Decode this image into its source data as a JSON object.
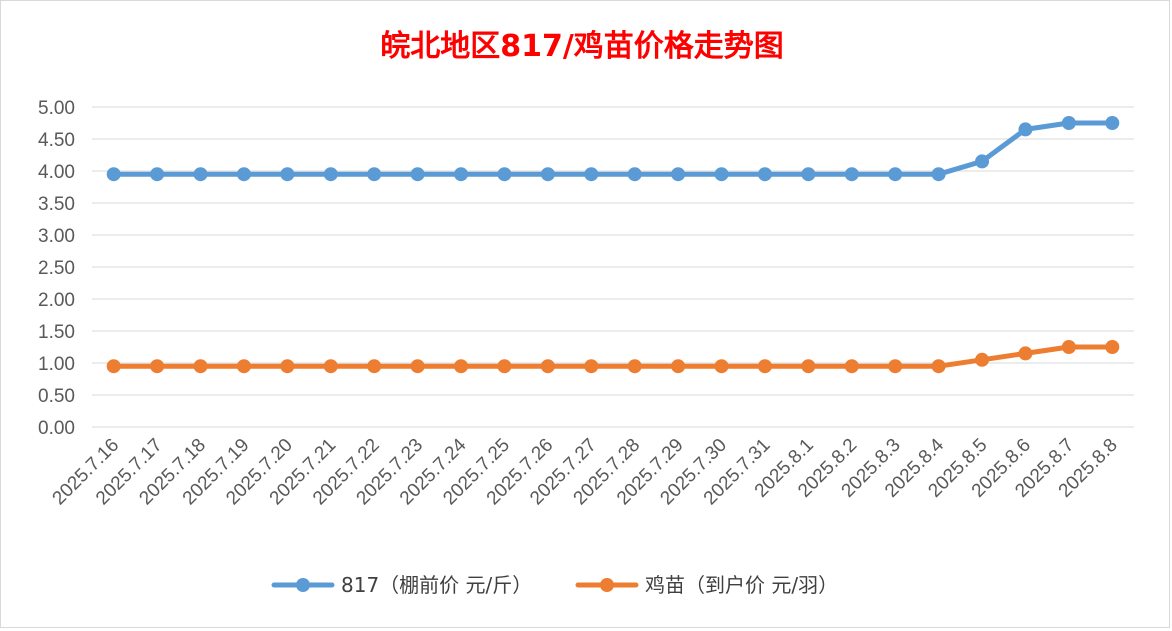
{
  "colors": {
    "series_817": "#5B9BD5",
    "series_chick": "#ED7D31",
    "title": "#FF0000",
    "grid": "#d9d9d9",
    "axis_text": "#595959"
  },
  "chart_data": {
    "type": "line",
    "title": "皖北地区817/鸡苗价格走势图",
    "xlabel": "",
    "ylabel": "",
    "ylim": [
      0,
      5
    ],
    "yticks": [
      "0.00",
      "0.50",
      "1.00",
      "1.50",
      "2.00",
      "2.50",
      "3.00",
      "3.50",
      "4.00",
      "4.50",
      "5.00"
    ],
    "grid": true,
    "legend_position": "bottom",
    "categories": [
      "2025.7.16",
      "2025.7.17",
      "2025.7.18",
      "2025.7.19",
      "2025.7.20",
      "2025.7.21",
      "2025.7.22",
      "2025.7.23",
      "2025.7.24",
      "2025.7.25",
      "2025.7.26",
      "2025.7.27",
      "2025.7.28",
      "2025.7.29",
      "2025.7.30",
      "2025.7.31",
      "2025.8.1",
      "2025.8.2",
      "2025.8.3",
      "2025.8.4",
      "2025.8.5",
      "2025.8.6",
      "2025.8.7",
      "2025.8.8"
    ],
    "series": [
      {
        "name": "817（棚前价 元/斤）",
        "color": "#5B9BD5",
        "values": [
          3.95,
          3.95,
          3.95,
          3.95,
          3.95,
          3.95,
          3.95,
          3.95,
          3.95,
          3.95,
          3.95,
          3.95,
          3.95,
          3.95,
          3.95,
          3.95,
          3.95,
          3.95,
          3.95,
          3.95,
          4.15,
          4.65,
          4.75,
          4.75
        ]
      },
      {
        "name": "鸡苗（到户价 元/羽）",
        "color": "#ED7D31",
        "values": [
          0.95,
          0.95,
          0.95,
          0.95,
          0.95,
          0.95,
          0.95,
          0.95,
          0.95,
          0.95,
          0.95,
          0.95,
          0.95,
          0.95,
          0.95,
          0.95,
          0.95,
          0.95,
          0.95,
          0.95,
          1.05,
          1.15,
          1.25,
          1.25
        ]
      }
    ]
  }
}
